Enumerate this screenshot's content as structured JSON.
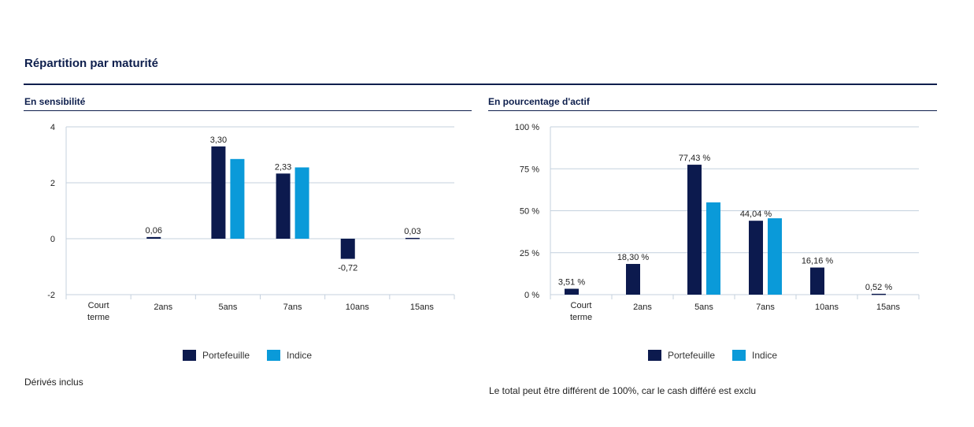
{
  "page": {
    "title": "Répartition par maturité"
  },
  "colors": {
    "portefeuille": "#0c1a4e",
    "indice": "#0a9ad9",
    "grid": "#c4d0de",
    "rule": "#0e1f4d"
  },
  "legend": {
    "portefeuille": "Portefeuille",
    "indice": "Indice"
  },
  "notes": {
    "left": "Dérivés inclus",
    "right": "Le total peut être différent de 100%, car le cash différé est exclu"
  },
  "chart_data": [
    {
      "type": "bar",
      "title": "En sensibilité",
      "categories": [
        "Court terme",
        "2ans",
        "5ans",
        "7ans",
        "10ans",
        "15ans"
      ],
      "ylim": [
        -2,
        4
      ],
      "yticks": [
        -2,
        0,
        2,
        4
      ],
      "ytick_labels": [
        "-2",
        "0",
        "2",
        "4"
      ],
      "grid": true,
      "legend_position": "bottom",
      "series": [
        {
          "name": "Portefeuille",
          "values": [
            null,
            0.06,
            3.3,
            2.33,
            -0.72,
            0.03
          ],
          "labels": [
            "",
            "0,06",
            "3,30",
            "2,33",
            "-0,72",
            "0,03"
          ]
        },
        {
          "name": "Indice",
          "values": [
            null,
            null,
            2.85,
            2.55,
            null,
            null
          ]
        }
      ]
    },
    {
      "type": "bar",
      "title": "En pourcentage d'actif",
      "categories": [
        "Court terme",
        "2ans",
        "5ans",
        "7ans",
        "10ans",
        "15ans"
      ],
      "ylim": [
        0,
        100
      ],
      "yticks": [
        0,
        25,
        50,
        75,
        100
      ],
      "ytick_labels": [
        "0 %",
        "25 %",
        "50 %",
        "75 %",
        "100 %"
      ],
      "grid": true,
      "legend_position": "bottom",
      "series": [
        {
          "name": "Portefeuille",
          "values": [
            3.51,
            18.3,
            77.43,
            44.04,
            16.16,
            0.52
          ],
          "labels": [
            "3,51 %",
            "18,30 %",
            "77,43 %",
            "44,04 %",
            "16,16 %",
            "0,52 %"
          ]
        },
        {
          "name": "Indice",
          "values": [
            null,
            null,
            55.0,
            45.5,
            null,
            null
          ]
        }
      ]
    }
  ]
}
